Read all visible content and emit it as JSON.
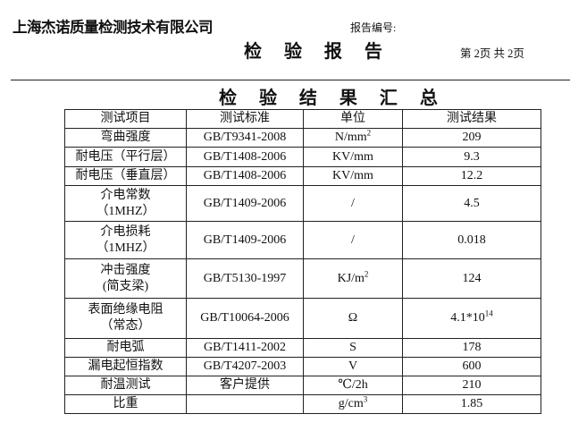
{
  "header": {
    "company": "上海杰诺质量检测技术有限公司",
    "report_no_label": "报告编号:",
    "title": "检 验 报 告",
    "page_info": "第 2页 共 2页"
  },
  "summary_title": "检 验 结 果 汇 总",
  "table": {
    "columns": [
      "测试项目",
      "测试标准",
      "单位",
      "测试结果"
    ],
    "rows": [
      {
        "item": [
          "弯曲强度"
        ],
        "standard": "GB/T9341-2008",
        "unit": "N/mm",
        "unit_sup": "2",
        "result": "209",
        "result_sup": ""
      },
      {
        "item": [
          "耐电压（平行层）"
        ],
        "standard": "GB/T1408-2006",
        "unit": "KV/mm",
        "unit_sup": "",
        "result": "9.3",
        "result_sup": ""
      },
      {
        "item": [
          "耐电压（垂直层）"
        ],
        "standard": "GB/T1408-2006",
        "unit": "KV/mm",
        "unit_sup": "",
        "result": "12.2",
        "result_sup": ""
      },
      {
        "item": [
          "介电常数",
          "（1MHZ）"
        ],
        "standard": "GB/T1409-2006",
        "unit": "/",
        "unit_sup": "",
        "result": "4.5",
        "result_sup": ""
      },
      {
        "item": [
          "介电损耗",
          "（1MHZ）"
        ],
        "standard": "GB/T1409-2006",
        "unit": "/",
        "unit_sup": "",
        "result": "0.018",
        "result_sup": ""
      },
      {
        "item": [
          "冲击强度",
          "(简支梁)"
        ],
        "standard": "GB/T5130-1997",
        "unit": "KJ/m",
        "unit_sup": "2",
        "result": "124",
        "result_sup": ""
      },
      {
        "item": [
          "表面绝缘电阻",
          "（常态）"
        ],
        "standard": "GB/T10064-2006",
        "unit": "Ω",
        "unit_sup": "",
        "result": "4.1*10",
        "result_sup": "14"
      },
      {
        "item": [
          "耐电弧"
        ],
        "standard": "GB/T1411-2002",
        "unit": "S",
        "unit_sup": "",
        "result": "178",
        "result_sup": ""
      },
      {
        "item": [
          "漏电起恒指数"
        ],
        "standard": "GB/T4207-2003",
        "unit": "V",
        "unit_sup": "",
        "result": "600",
        "result_sup": ""
      },
      {
        "item": [
          "耐温测试"
        ],
        "standard": "客户提供",
        "unit": "℃/2h",
        "unit_sup": "",
        "result": "210",
        "result_sup": ""
      },
      {
        "item": [
          "比重"
        ],
        "standard": "",
        "unit": "g/cm",
        "unit_sup": "3",
        "result": "1.85",
        "result_sup": ""
      }
    ]
  }
}
